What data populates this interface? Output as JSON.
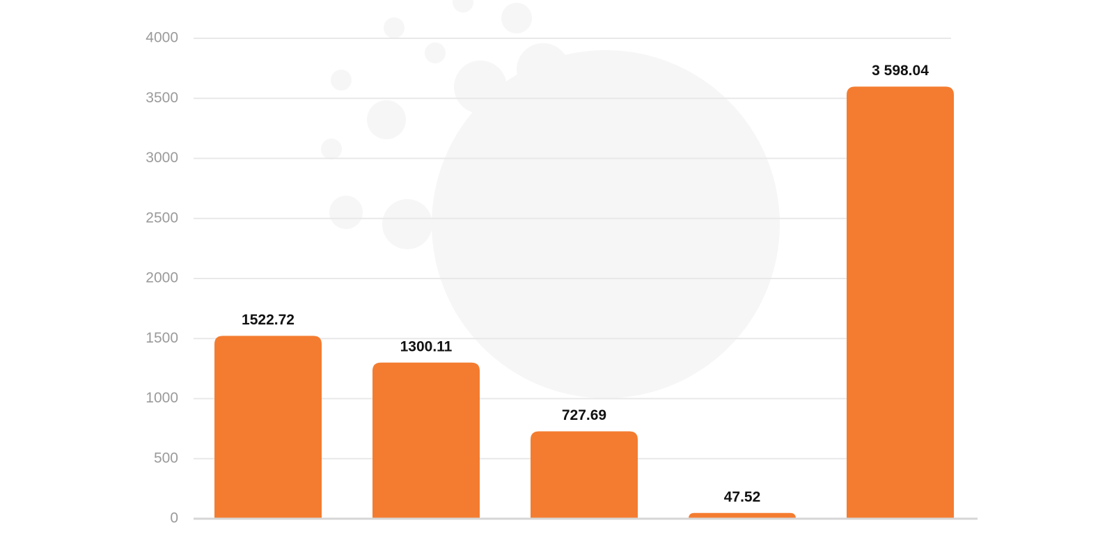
{
  "chart_data": {
    "type": "bar",
    "values": [
      1522.72,
      1300.11,
      727.69,
      47.52,
      3598.04
    ],
    "value_labels": [
      "1522.72",
      "1300.11",
      "727.69",
      "47.52",
      "3 598.04"
    ],
    "color": "#f47c30",
    "ylim": [
      0,
      4000
    ],
    "yticks": [
      0,
      500,
      1000,
      1500,
      2000,
      2500,
      3000,
      3500,
      4000
    ],
    "grid": true
  }
}
